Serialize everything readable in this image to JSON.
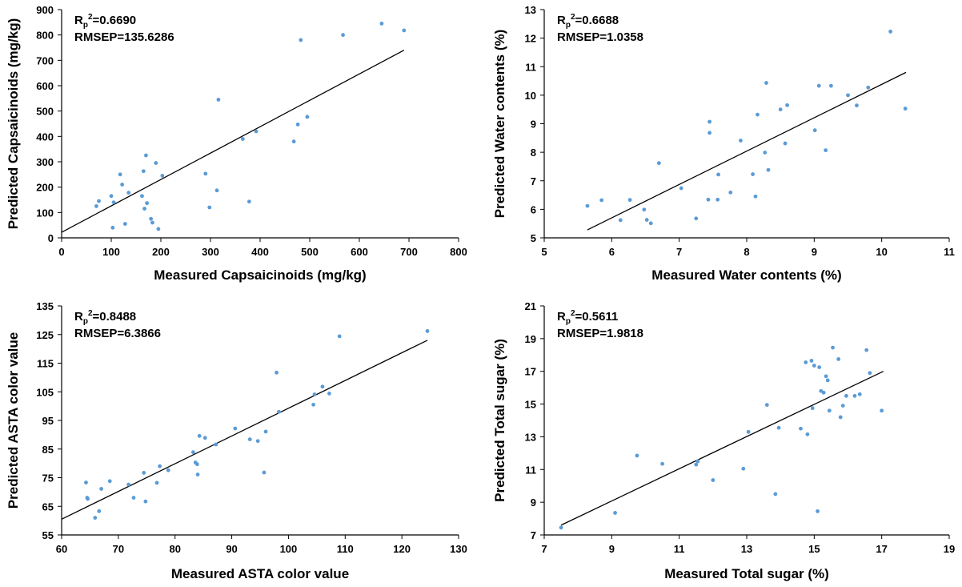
{
  "colors": {
    "point": "#5b9bd5",
    "line": "#000000",
    "axis": "#000000"
  },
  "chart_data": [
    {
      "type": "scatter",
      "title": "",
      "xlabel": "Measured Capsaicinoids (mg/kg)",
      "ylabel": "Predicted Capsaicinoids (mg/kg)",
      "xlim": [
        0,
        800
      ],
      "ylim": [
        0,
        900
      ],
      "xticks": [
        0,
        100,
        200,
        300,
        400,
        500,
        600,
        700,
        800
      ],
      "yticks": [
        0,
        100,
        200,
        300,
        400,
        500,
        600,
        700,
        800,
        900
      ],
      "xtick_labels": [
        "0",
        "100",
        "200",
        "300",
        "400",
        "500",
        "600",
        "700",
        "800"
      ],
      "ytick_labels": [
        "0",
        "100",
        "200",
        "300",
        "400",
        "500",
        "600",
        "700",
        "800",
        "900"
      ],
      "stats": {
        "r2_prefix": "R",
        "r2_sub": "p",
        "r2_sup": "2",
        "r2_value": "=0.6690",
        "rmsep": "RMSEP=135.6286"
      },
      "grid": false,
      "fit_line": [
        [
          0,
          22
        ],
        [
          690,
          740
        ]
      ],
      "points": [
        [
          70,
          125
        ],
        [
          75,
          145
        ],
        [
          100,
          165
        ],
        [
          103,
          40
        ],
        [
          105,
          140
        ],
        [
          118,
          250
        ],
        [
          122,
          210
        ],
        [
          128,
          55
        ],
        [
          135,
          178
        ],
        [
          162,
          165
        ],
        [
          165,
          263
        ],
        [
          167,
          115
        ],
        [
          170,
          325
        ],
        [
          172,
          137
        ],
        [
          180,
          75
        ],
        [
          183,
          60
        ],
        [
          190,
          295
        ],
        [
          195,
          35
        ],
        [
          203,
          245
        ],
        [
          290,
          253
        ],
        [
          298,
          120
        ],
        [
          313,
          187
        ],
        [
          316,
          545
        ],
        [
          365,
          390
        ],
        [
          378,
          143
        ],
        [
          392,
          420
        ],
        [
          468,
          380
        ],
        [
          476,
          447
        ],
        [
          482,
          780
        ],
        [
          495,
          477
        ],
        [
          567,
          800
        ],
        [
          645,
          845
        ],
        [
          690,
          818
        ]
      ]
    },
    {
      "type": "scatter",
      "title": "",
      "xlabel": "Measured Water contents (%)",
      "ylabel": "Predicted Water contents (%)",
      "xlim": [
        5,
        11
      ],
      "ylim": [
        5,
        13
      ],
      "xticks": [
        5,
        6,
        7,
        8,
        9,
        10,
        11
      ],
      "yticks": [
        5,
        6,
        7,
        8,
        9,
        10,
        11,
        12,
        13
      ],
      "xtick_labels": [
        "5",
        "6",
        "7",
        "8",
        "9",
        "10",
        "11"
      ],
      "ytick_labels": [
        "5",
        "6",
        "7",
        "8",
        "9",
        "10",
        "11",
        "12",
        "13"
      ],
      "stats": {
        "r2_prefix": "R",
        "r2_sub": "p",
        "r2_sup": "2",
        "r2_value": "=0.6688",
        "rmsep": "RMSEP=1.0358"
      },
      "grid": false,
      "fit_line": [
        [
          5.64,
          5.28
        ],
        [
          10.36,
          10.8
        ]
      ],
      "points": [
        [
          5.64,
          6.12
        ],
        [
          5.85,
          6.32
        ],
        [
          6.13,
          5.62
        ],
        [
          6.27,
          6.33
        ],
        [
          6.48,
          5.99
        ],
        [
          6.52,
          5.63
        ],
        [
          6.58,
          5.51
        ],
        [
          6.7,
          7.62
        ],
        [
          7.03,
          6.74
        ],
        [
          7.25,
          5.68
        ],
        [
          7.43,
          6.34
        ],
        [
          7.45,
          8.68
        ],
        [
          7.45,
          9.07
        ],
        [
          7.57,
          6.34
        ],
        [
          7.58,
          7.22
        ],
        [
          7.76,
          6.59
        ],
        [
          7.91,
          8.41
        ],
        [
          8.09,
          7.23
        ],
        [
          8.13,
          6.45
        ],
        [
          8.16,
          9.32
        ],
        [
          8.27,
          7.99
        ],
        [
          8.29,
          10.43
        ],
        [
          8.32,
          7.38
        ],
        [
          8.5,
          9.5
        ],
        [
          8.57,
          8.31
        ],
        [
          8.6,
          9.65
        ],
        [
          9.01,
          8.77
        ],
        [
          9.07,
          10.33
        ],
        [
          9.17,
          8.07
        ],
        [
          9.25,
          10.33
        ],
        [
          9.5,
          10.0
        ],
        [
          9.63,
          9.64
        ],
        [
          9.8,
          10.27
        ],
        [
          10.13,
          12.23
        ],
        [
          10.35,
          9.53
        ]
      ]
    },
    {
      "type": "scatter",
      "title": "",
      "xlabel": "Measured ASTA color value",
      "ylabel": "Predicted ASTA color value",
      "xlim": [
        60,
        130
      ],
      "ylim": [
        55,
        135
      ],
      "xticks": [
        60,
        70,
        80,
        90,
        100,
        110,
        120,
        130
      ],
      "yticks": [
        55,
        65,
        75,
        85,
        95,
        105,
        115,
        125,
        135
      ],
      "xtick_labels": [
        "60",
        "70",
        "80",
        "90",
        "100",
        "110",
        "120",
        "130"
      ],
      "ytick_labels": [
        "55",
        "65",
        "75",
        "85",
        "95",
        "105",
        "115",
        "125",
        "135"
      ],
      "stats": {
        "r2_prefix": "R",
        "r2_sub": "p",
        "r2_sup": "2",
        "r2_value": "=0.8488",
        "rmsep": "RMSEP=6.3866"
      },
      "grid": false,
      "fit_line": [
        [
          60,
          60.5
        ],
        [
          124.5,
          123
        ]
      ],
      "points": [
        [
          64.3,
          73.3
        ],
        [
          64.5,
          68
        ],
        [
          64.6,
          67.6
        ],
        [
          65.9,
          61
        ],
        [
          66.6,
          63.3
        ],
        [
          67,
          71.1
        ],
        [
          68.5,
          73.8
        ],
        [
          71.8,
          72.6
        ],
        [
          72.7,
          68
        ],
        [
          74.5,
          76.7
        ],
        [
          74.8,
          66.7
        ],
        [
          76.8,
          73.2
        ],
        [
          77.3,
          79
        ],
        [
          78.8,
          77.6
        ],
        [
          83.2,
          83.9
        ],
        [
          83.6,
          80.3
        ],
        [
          83.9,
          79.7
        ],
        [
          84,
          76.1
        ],
        [
          84.3,
          89.6
        ],
        [
          85.3,
          88.9
        ],
        [
          87.2,
          86.6
        ],
        [
          90.6,
          92.2
        ],
        [
          93.2,
          88.4
        ],
        [
          94.6,
          87.8
        ],
        [
          95.7,
          76.8
        ],
        [
          96,
          91.1
        ],
        [
          97.9,
          111.7
        ],
        [
          98.3,
          98
        ],
        [
          104.4,
          100.5
        ],
        [
          104.6,
          104.1
        ],
        [
          106,
          106.8
        ],
        [
          107.2,
          104.4
        ],
        [
          109,
          124.4
        ],
        [
          124.5,
          126.2
        ]
      ]
    },
    {
      "type": "scatter",
      "title": "",
      "xlabel": "Measured Total sugar (%)",
      "ylabel": "Predicted Total sugar (%)",
      "xlim": [
        7,
        19
      ],
      "ylim": [
        7,
        21
      ],
      "xticks": [
        7,
        9,
        11,
        13,
        15,
        17,
        19
      ],
      "yticks": [
        7,
        9,
        11,
        13,
        15,
        17,
        19,
        21
      ],
      "xtick_labels": [
        "7",
        "9",
        "11",
        "13",
        "15",
        "17",
        "19"
      ],
      "ytick_labels": [
        "7",
        "9",
        "11",
        "13",
        "15",
        "17",
        "19",
        "21"
      ],
      "stats": {
        "r2_prefix": "R",
        "r2_sub": "p",
        "r2_sup": "2",
        "r2_value": "=0.5611",
        "rmsep": "RMSEP=1.9818"
      },
      "grid": false,
      "fit_line": [
        [
          7.5,
          7.6
        ],
        [
          17.05,
          17.0
        ]
      ],
      "points": [
        [
          7.5,
          7.45
        ],
        [
          9.1,
          8.35
        ],
        [
          9.75,
          11.85
        ],
        [
          10.5,
          11.35
        ],
        [
          11.5,
          11.3
        ],
        [
          11.55,
          11.5
        ],
        [
          12.0,
          10.35
        ],
        [
          12.9,
          11.05
        ],
        [
          13.05,
          13.3
        ],
        [
          13.6,
          14.95
        ],
        [
          13.85,
          9.5
        ],
        [
          13.95,
          13.55
        ],
        [
          14.6,
          13.5
        ],
        [
          14.75,
          17.55
        ],
        [
          14.8,
          13.15
        ],
        [
          14.92,
          17.65
        ],
        [
          14.95,
          14.75
        ],
        [
          15.0,
          17.35
        ],
        [
          15.1,
          8.45
        ],
        [
          15.15,
          17.25
        ],
        [
          15.2,
          15.8
        ],
        [
          15.28,
          15.7
        ],
        [
          15.35,
          16.7
        ],
        [
          15.4,
          16.45
        ],
        [
          15.45,
          14.6
        ],
        [
          15.55,
          18.45
        ],
        [
          15.72,
          17.75
        ],
        [
          15.78,
          14.2
        ],
        [
          15.85,
          14.9
        ],
        [
          15.95,
          15.5
        ],
        [
          16.2,
          15.5
        ],
        [
          16.35,
          15.6
        ],
        [
          16.55,
          18.3
        ],
        [
          16.65,
          16.9
        ],
        [
          17.0,
          14.6
        ]
      ]
    }
  ]
}
